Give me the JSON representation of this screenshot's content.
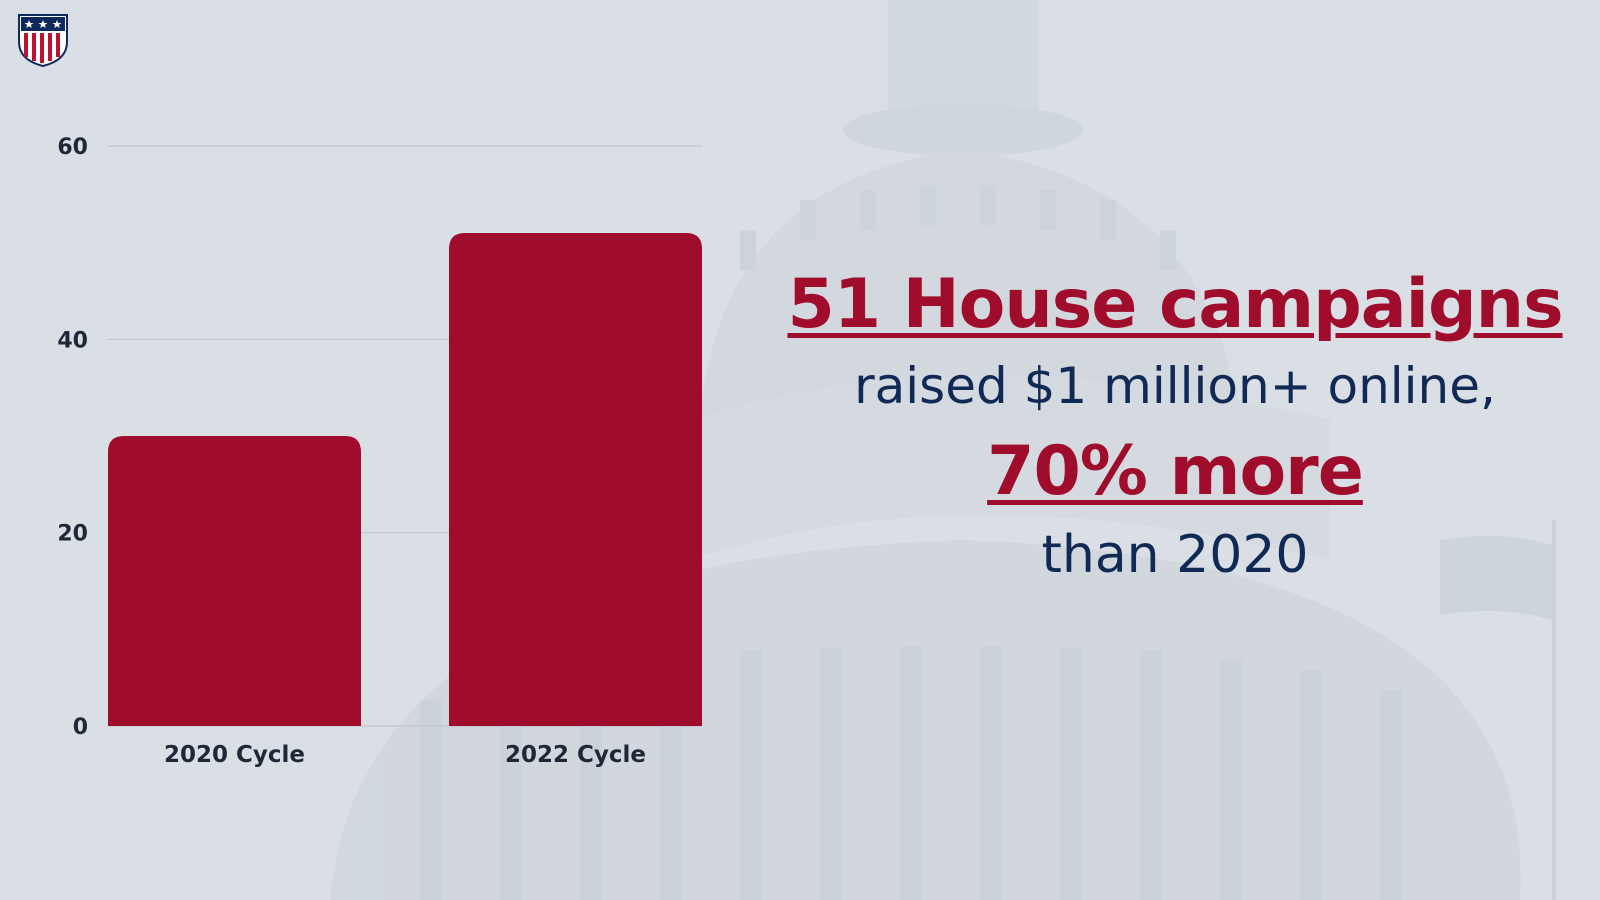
{
  "colors": {
    "background": "#dadfe5",
    "bar": "#a00c2c",
    "headline_red": "#a00c2c",
    "headline_navy": "#112a55",
    "tick_text": "#1e2836",
    "grid": "#bcc2ca"
  },
  "logo": {
    "icon": "shield-stars-stripes-icon"
  },
  "background_image": {
    "icon": "capitol-dome-icon"
  },
  "chart_data": {
    "type": "bar",
    "categories": [
      "2020 Cycle",
      "2022 Cycle"
    ],
    "values": [
      30,
      51
    ],
    "title": "",
    "xlabel": "",
    "ylabel": "",
    "ylim": [
      0,
      60
    ],
    "yticks": [
      0,
      20,
      40,
      60
    ],
    "grid": true,
    "legend": "none"
  },
  "headline": {
    "line1": "51 House campaigns",
    "line2": "raised $1 million+ online,",
    "line3": "70% more",
    "line4": "than 2020"
  }
}
